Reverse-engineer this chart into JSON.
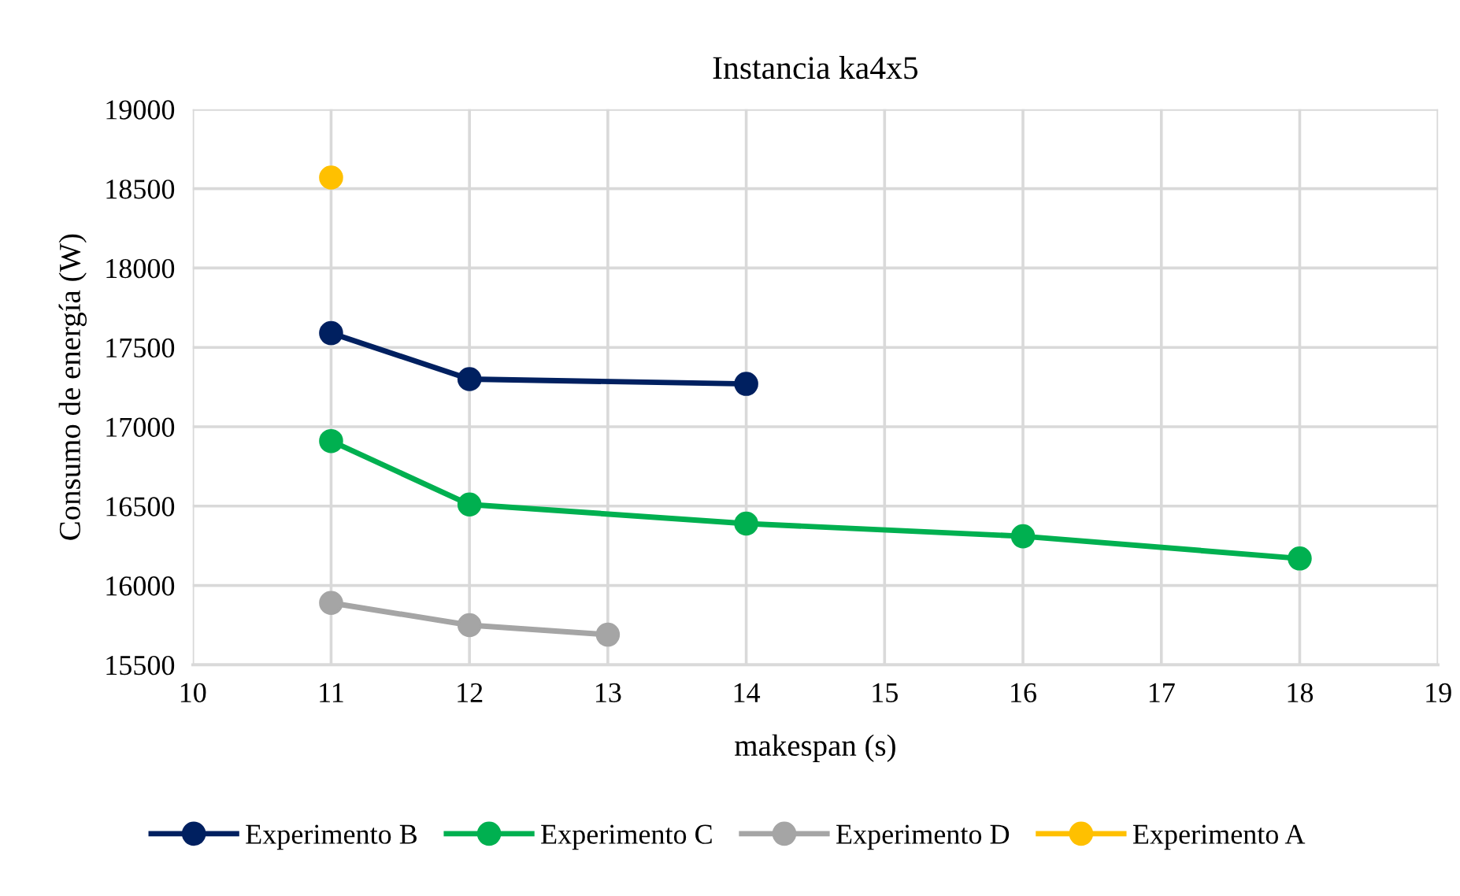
{
  "chart_data": {
    "type": "line",
    "title": "Instancia ka4x5",
    "xlabel": "makespan (s)",
    "ylabel": "Consumo de energía (W)",
    "xlim": [
      10,
      19
    ],
    "xticks": [
      10,
      11,
      12,
      13,
      14,
      15,
      16,
      17,
      18,
      19
    ],
    "ylim": [
      15500,
      19000
    ],
    "yticks": [
      15500,
      16000,
      16500,
      17000,
      17500,
      18000,
      18500,
      19000
    ],
    "grid": true,
    "legend": "bottom",
    "marker": "circle",
    "line_style": "solid",
    "series": [
      {
        "name": "Experimento B",
        "color": "#002060",
        "x": [
          11,
          12,
          14
        ],
        "values": [
          17590,
          17300,
          17270
        ]
      },
      {
        "name": "Experimento C",
        "color": "#00b050",
        "x": [
          11,
          12,
          14,
          16,
          18
        ],
        "values": [
          16910,
          16510,
          16390,
          16310,
          16170
        ]
      },
      {
        "name": "Experimento D",
        "color": "#a5a5a5",
        "x": [
          11,
          12,
          13
        ],
        "values": [
          15890,
          15750,
          15690
        ]
      },
      {
        "name": "Experimento A",
        "color": "#ffc000",
        "x": [
          11
        ],
        "values": [
          18570
        ]
      }
    ]
  }
}
